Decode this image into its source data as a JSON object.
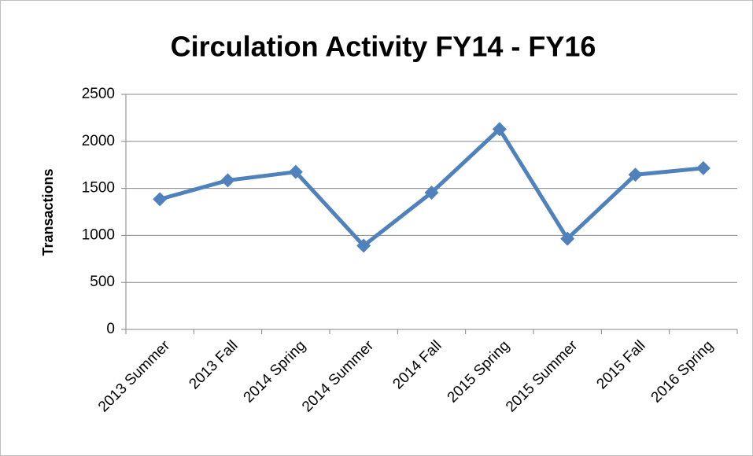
{
  "chart_data": {
    "type": "line",
    "title": "Circulation Activity FY14 - FY16",
    "y_label": "Transactions",
    "categories": [
      "2013 Summer",
      "2013 Fall",
      "2014 Spring",
      "2014 Summer",
      "2014 Fall",
      "2015 Spring",
      "2015 Summer",
      "2015 Fall",
      "2016 Spring"
    ],
    "values": [
      1385,
      1585,
      1675,
      890,
      1455,
      2130,
      965,
      1645,
      1715
    ],
    "color": "#4f81bd",
    "ylim": [
      0,
      2500
    ],
    "yticks": [
      0,
      500,
      1000,
      1500,
      2000,
      2500
    ],
    "grid": true
  }
}
